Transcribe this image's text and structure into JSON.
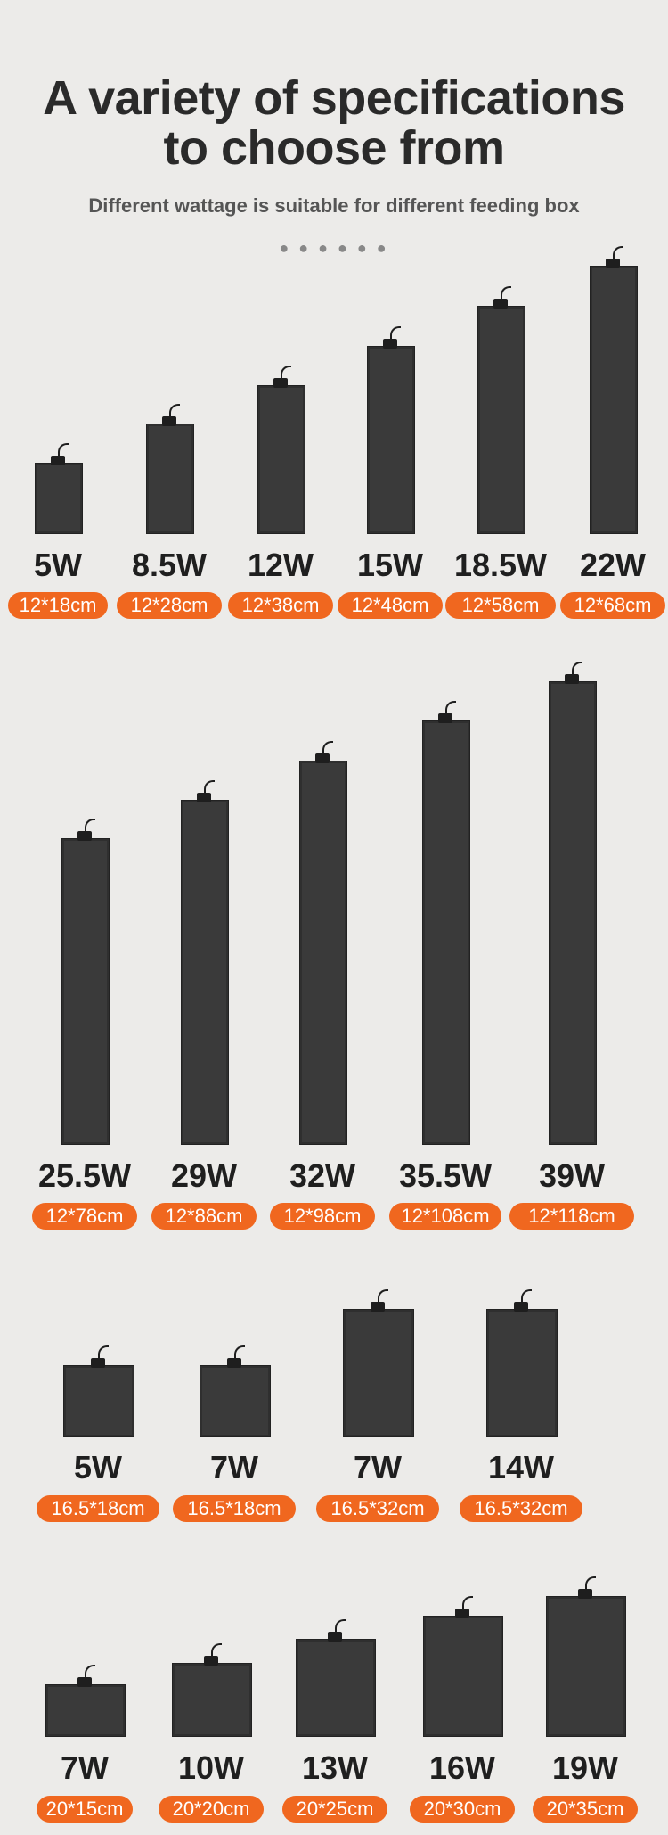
{
  "header": {
    "title_line1": "A variety of specifications",
    "title_line2": "to choose from",
    "subtitle": "Different wattage is suitable for different feeding box",
    "dots": "● ● ● ● ● ●"
  },
  "colors": {
    "accent": "#f0671f",
    "pad": "#3a3a3a",
    "background": "#ecebe9"
  },
  "rows": [
    {
      "items": [
        {
          "watt": "5W",
          "size": "12*18cm"
        },
        {
          "watt": "8.5W",
          "size": "12*28cm"
        },
        {
          "watt": "12W",
          "size": "12*38cm"
        },
        {
          "watt": "15W",
          "size": "12*48cm"
        },
        {
          "watt": "18.5W",
          "size": "12*58cm"
        },
        {
          "watt": "22W",
          "size": "12*68cm"
        }
      ]
    },
    {
      "items": [
        {
          "watt": "25.5W",
          "size": "12*78cm"
        },
        {
          "watt": "29W",
          "size": "12*88cm"
        },
        {
          "watt": "32W",
          "size": "12*98cm"
        },
        {
          "watt": "35.5W",
          "size": "12*108cm"
        },
        {
          "watt": "39W",
          "size": "12*118cm"
        }
      ]
    },
    {
      "items": [
        {
          "watt": "5W",
          "size": "16.5*18cm"
        },
        {
          "watt": "7W",
          "size": "16.5*18cm"
        },
        {
          "watt": "7W",
          "size": "16.5*32cm"
        },
        {
          "watt": "14W",
          "size": "16.5*32cm"
        }
      ]
    },
    {
      "items": [
        {
          "watt": "7W",
          "size": "20*15cm"
        },
        {
          "watt": "10W",
          "size": "20*20cm"
        },
        {
          "watt": "13W",
          "size": "20*25cm"
        },
        {
          "watt": "16W",
          "size": "20*30cm"
        },
        {
          "watt": "19W",
          "size": "20*35cm"
        }
      ]
    }
  ]
}
